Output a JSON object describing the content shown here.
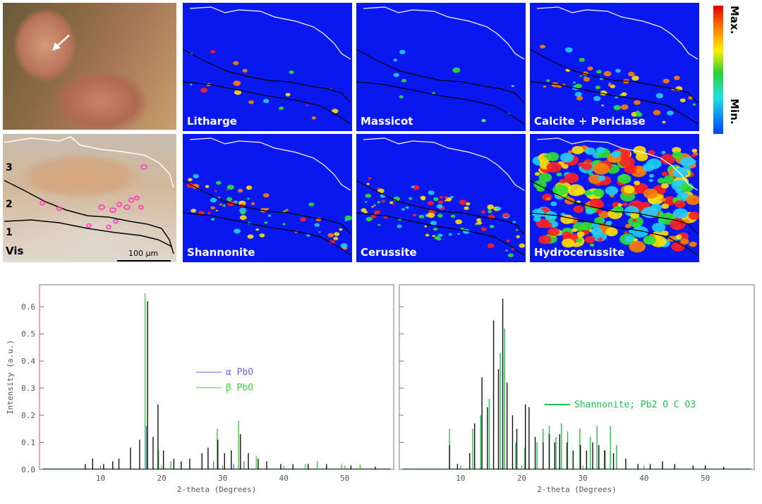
{
  "maps": [
    {
      "label": "Litharge"
    },
    {
      "label": "Massicot"
    },
    {
      "label": "Calcite + Periclase"
    },
    {
      "label": "Shannonite"
    },
    {
      "label": "Cerussite"
    },
    {
      "label": "Hydrocerussite"
    }
  ],
  "colorbar": {
    "max_label": "Max.",
    "min_label": "Min."
  },
  "vis_panel": {
    "label": "Vis",
    "layers": [
      "3",
      "2",
      "1"
    ],
    "scale_label": "100 µm"
  },
  "chart_data": [
    {
      "type": "line",
      "xlabel": "2-theta (Degrees)",
      "ylabel": "Intensity (a.u.)",
      "xlim": [
        0,
        58
      ],
      "ylim": [
        0,
        0.65
      ],
      "xticks": [
        10,
        20,
        30,
        40,
        50
      ],
      "yticks": [
        0.0,
        0.1,
        0.2,
        0.3,
        0.4,
        0.5,
        0.6
      ],
      "series": [
        {
          "name": "α PbO",
          "color": "#6a6ae0",
          "peaks": [
            [
              17.5,
              0.16
            ],
            [
              19.5,
              0.04
            ],
            [
              28.5,
              0.03
            ],
            [
              31.8,
              0.02
            ],
            [
              33.5,
              0.03
            ]
          ]
        },
        {
          "name": "β PbO",
          "color": "#40d040",
          "peaks": [
            [
              17.3,
              0.65
            ],
            [
              19.5,
              0.07
            ],
            [
              21.5,
              0.03
            ],
            [
              29.1,
              0.15
            ],
            [
              32.6,
              0.18
            ],
            [
              35.5,
              0.05
            ],
            [
              43.5,
              0.02
            ],
            [
              45.5,
              0.03
            ],
            [
              49.5,
              0.02
            ],
            [
              52.5,
              0.02
            ]
          ]
        },
        {
          "name": "",
          "color": "#111111",
          "peaks": [
            [
              7.5,
              0.02
            ],
            [
              8.7,
              0.04
            ],
            [
              10.5,
              0.02
            ],
            [
              12,
              0.03
            ],
            [
              13,
              0.04
            ],
            [
              14.9,
              0.08
            ],
            [
              16.4,
              0.11
            ],
            [
              17.7,
              0.62
            ],
            [
              18.6,
              0.12
            ],
            [
              19.4,
              0.24
            ],
            [
              20.3,
              0.07
            ],
            [
              22,
              0.04
            ],
            [
              23.2,
              0.03
            ],
            [
              24.6,
              0.04
            ],
            [
              26.6,
              0.06
            ],
            [
              27.6,
              0.08
            ],
            [
              29.2,
              0.11
            ],
            [
              30.3,
              0.06
            ],
            [
              31.4,
              0.07
            ],
            [
              32.9,
              0.13
            ],
            [
              34.2,
              0.06
            ],
            [
              35.8,
              0.04
            ],
            [
              37.2,
              0.03
            ],
            [
              39.5,
              0.02
            ],
            [
              41.5,
              0.02
            ],
            [
              44,
              0.02
            ],
            [
              47,
              0.02
            ],
            [
              51,
              0.015
            ],
            [
              55,
              0.01
            ]
          ]
        }
      ]
    },
    {
      "type": "line",
      "xlabel": "2-theta (Degrees)",
      "xlim": [
        0,
        58
      ],
      "ylim": [
        0,
        0.65
      ],
      "xticks": [
        10,
        20,
        30,
        40,
        50
      ],
      "series": [
        {
          "name": "Shannonite; Pb2 O C O3",
          "color": "#20c050",
          "peaks": [
            [
              8.2,
              0.15
            ],
            [
              12,
              0.15
            ],
            [
              13.3,
              0.2
            ],
            [
              14.7,
              0.26
            ],
            [
              16.5,
              0.43
            ],
            [
              17.2,
              0.52
            ],
            [
              19,
              0.1
            ],
            [
              20.5,
              0.08
            ],
            [
              22.5,
              0.1
            ],
            [
              23.5,
              0.15
            ],
            [
              24.5,
              0.16
            ],
            [
              25.6,
              0.12
            ],
            [
              26.5,
              0.17
            ],
            [
              27.5,
              0.14
            ],
            [
              29.5,
              0.15
            ],
            [
              31.2,
              0.12
            ],
            [
              32.3,
              0.16
            ],
            [
              33.5,
              0.07
            ],
            [
              34.5,
              0.16
            ],
            [
              35.5,
              0.09
            ]
          ]
        },
        {
          "name": "",
          "color": "#111111",
          "peaks": [
            [
              8.2,
              0.09
            ],
            [
              9.5,
              0.02
            ],
            [
              11.5,
              0.06
            ],
            [
              12.3,
              0.17
            ],
            [
              13.5,
              0.34
            ],
            [
              14.4,
              0.23
            ],
            [
              15.4,
              0.55
            ],
            [
              16.2,
              0.37
            ],
            [
              16.9,
              0.63
            ],
            [
              17.6,
              0.32
            ],
            [
              18.5,
              0.2
            ],
            [
              19.2,
              0.15
            ],
            [
              20.6,
              0.24
            ],
            [
              21.2,
              0.23
            ],
            [
              22.2,
              0.12
            ],
            [
              23.5,
              0.1
            ],
            [
              24.5,
              0.13
            ],
            [
              25.4,
              0.1
            ],
            [
              26.2,
              0.13
            ],
            [
              27.4,
              0.1
            ],
            [
              28.4,
              0.07
            ],
            [
              29.6,
              0.09
            ],
            [
              30.6,
              0.07
            ],
            [
              31.6,
              0.1
            ],
            [
              32.6,
              0.09
            ],
            [
              33.6,
              0.07
            ],
            [
              35,
              0.06
            ],
            [
              37,
              0.04
            ],
            [
              39,
              0.02
            ],
            [
              41,
              0.02
            ],
            [
              43,
              0.03
            ],
            [
              45,
              0.02
            ],
            [
              48,
              0.015
            ],
            [
              50,
              0.015
            ],
            [
              53,
              0.01
            ]
          ]
        }
      ]
    }
  ]
}
